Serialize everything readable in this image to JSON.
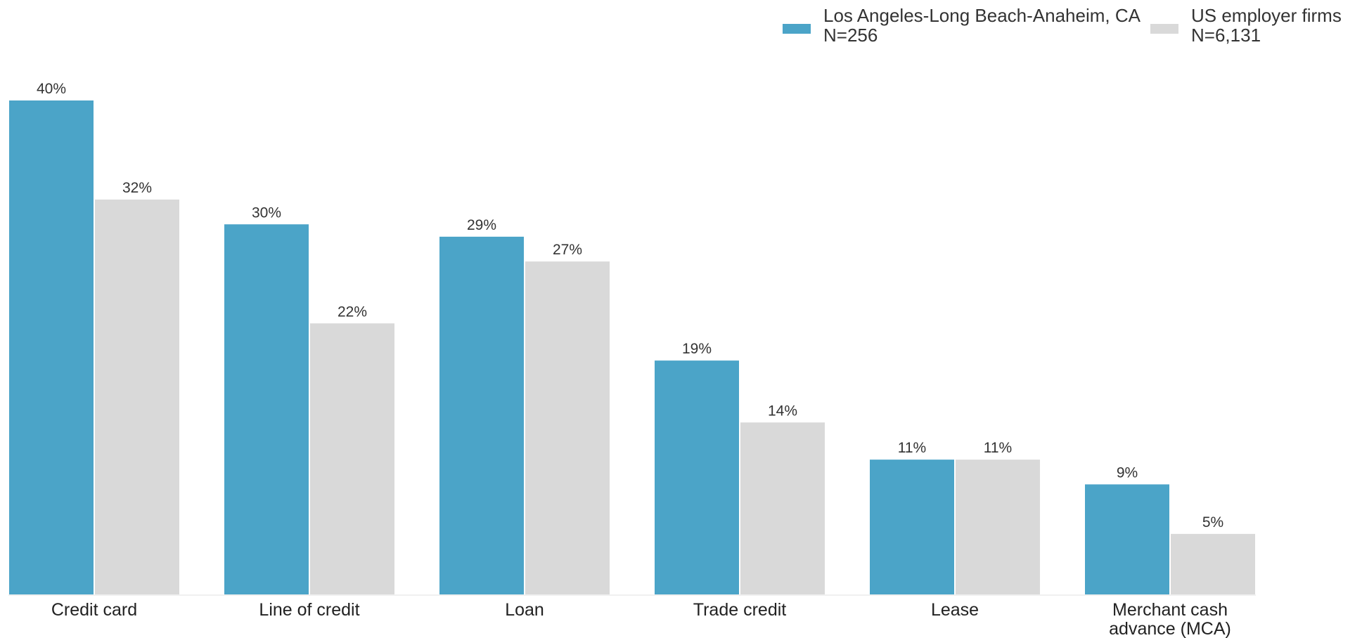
{
  "chart_data": {
    "type": "bar",
    "categories": [
      "Credit card",
      "Line of credit",
      "Loan",
      "Trade credit",
      "Lease",
      "Merchant cash\nadvance (MCA)"
    ],
    "series": [
      {
        "name": "Los Angeles-Long Beach-Anaheim, CA",
        "sample": "N=256",
        "color": "#4ba4c8",
        "values": [
          40,
          30,
          29,
          19,
          11,
          9
        ]
      },
      {
        "name": "US employer firms",
        "sample": "N=6,131",
        "color": "#d9d9d9",
        "values": [
          32,
          22,
          27,
          14,
          11,
          5
        ]
      }
    ],
    "value_suffix": "%",
    "ylim": [
      0,
      40
    ],
    "grid": false,
    "legend_position": "top-right",
    "title": "",
    "xlabel": "",
    "ylabel": ""
  }
}
